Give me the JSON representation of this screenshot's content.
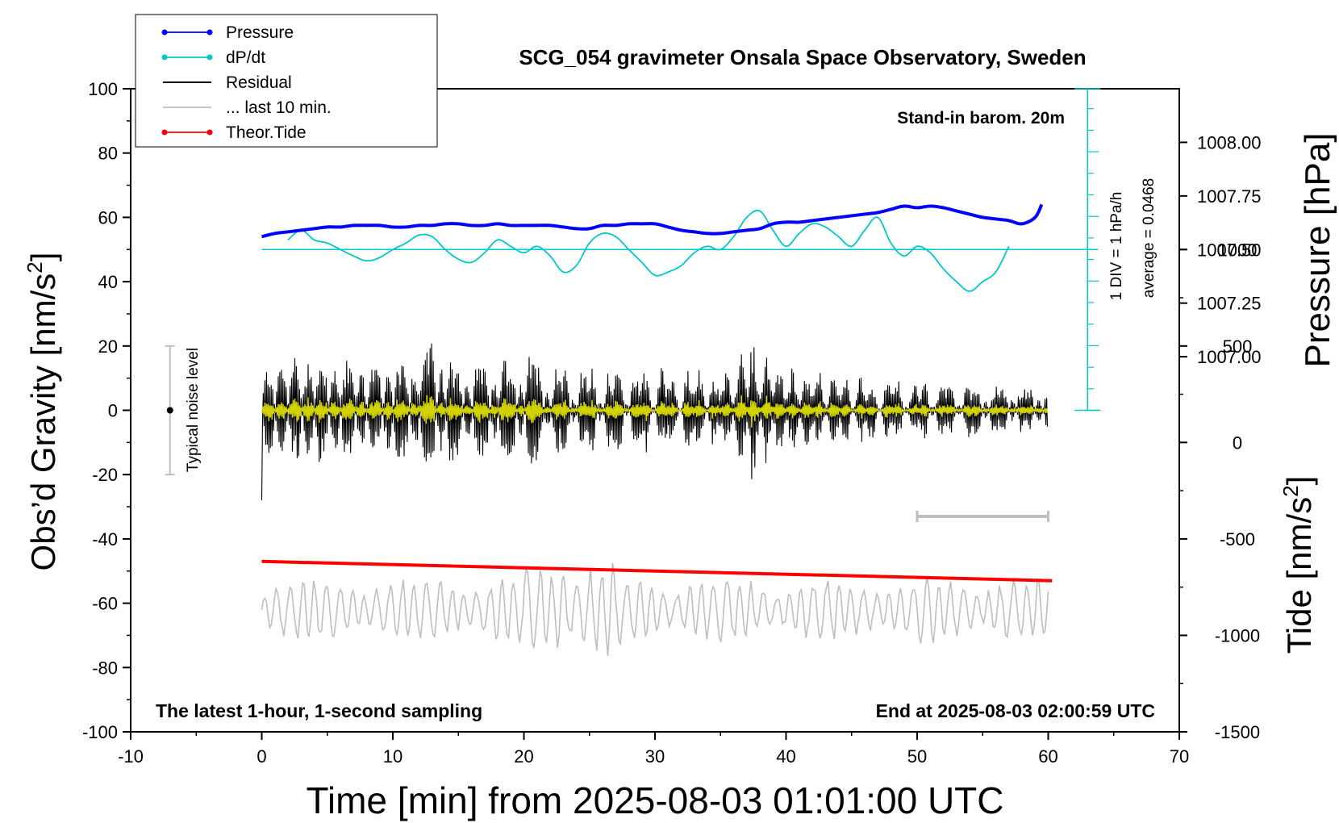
{
  "chart_data": {
    "type": "line",
    "title": "SCG_054 gravimeter Onsala Space Observatory, Sweden",
    "xlabel": "Time [min] from 2025-08-03 01:01:00 UTC",
    "ylabel_left_main": "Obs’d Gravity [nm/s",
    "ylabel_left_sup": "2",
    "ylabel_left_end": "]",
    "ylabel_right_pressure": "Pressure [hPa]",
    "ylabel_right_tide_main": "Tide [nm/s",
    "ylabel_right_tide_sup": "2",
    "ylabel_right_tide_end": "]",
    "xlim": [
      -10,
      70
    ],
    "ylim": [
      -100,
      100
    ],
    "x_ticks": [
      "-10",
      "0",
      "10",
      "20",
      "30",
      "40",
      "50",
      "60",
      "70"
    ],
    "y_ticks": [
      "-100",
      "-80",
      "-60",
      "-40",
      "-20",
      "0",
      "20",
      "40",
      "60",
      "80",
      "100"
    ],
    "pressure_ticks": [
      "1007.00",
      "1007.25",
      "1007.50",
      "1007.75",
      "1008.00"
    ],
    "pressure_tick_values": [
      1007.0,
      1007.25,
      1007.5,
      1007.75,
      1008.0
    ],
    "tide_ticks": [
      "-1500",
      "-1000",
      "-500",
      "0",
      "500",
      "1000"
    ],
    "tide_tick_values": [
      -1500,
      -1000,
      -500,
      0,
      500,
      1000
    ],
    "grid": false,
    "legend_position": "top-left",
    "legend": [
      {
        "label": "Pressure",
        "color": "#0000ff",
        "marker": true
      },
      {
        "label": "dP/dt",
        "color": "#00c8c8",
        "marker": true
      },
      {
        "label": "Residual",
        "color": "#000000",
        "marker": false
      },
      {
        "label": "... last 10 min.",
        "color": "#bebebe",
        "marker": false
      },
      {
        "label": "Theor.Tide",
        "color": "#ff0000",
        "marker": true
      }
    ],
    "annotations": {
      "barometer": "Stand-in barom. 20m",
      "scale_div": "1 DIV = 1 hPa/h",
      "average": "average = 0.0468",
      "noise": "Typical noise level",
      "bottom_left": "The latest 1-hour, 1-second sampling",
      "bottom_right": "End at 2025-08-03 02:00:59 UTC"
    },
    "colors": {
      "pressure": "#0000ff",
      "dpdt": "#00c8c8",
      "residual": "#000000",
      "residual_smooth": "#d2d200",
      "last10": "#bebebe",
      "tide": "#ff0000",
      "noise": "#bebebe"
    },
    "noise_level": {
      "x": -7,
      "center": 0,
      "half_range": 20
    },
    "last10_marker": {
      "x_start": 50,
      "x_end": 60,
      "y": -33
    },
    "dpdt_axis": {
      "x": 63,
      "y_top": 100,
      "y_bottom": 0,
      "zero_level": 50,
      "tick_spacing": 6.7
    },
    "series": [
      {
        "name": "Pressure",
        "x": [
          0,
          1,
          2,
          3,
          4,
          5,
          6,
          7,
          8,
          9,
          10,
          11,
          12,
          13,
          14,
          15,
          16,
          17,
          18,
          19,
          20,
          21,
          22,
          23,
          24,
          25,
          26,
          27,
          28,
          29,
          30,
          31,
          32,
          33,
          34,
          35,
          36,
          37,
          38,
          39,
          40,
          41,
          42,
          43,
          44,
          45,
          46,
          47,
          48,
          49,
          50,
          51,
          52,
          53,
          54,
          55,
          56,
          57,
          58,
          59,
          59.5
        ],
        "y": [
          54,
          55,
          55.5,
          56,
          56.5,
          57,
          57,
          57.5,
          57.5,
          57.5,
          57,
          57,
          57.5,
          57.5,
          58,
          58,
          57.5,
          57.5,
          58,
          57.5,
          57.5,
          57.5,
          57.5,
          57,
          56.5,
          56.5,
          57.5,
          57.5,
          58,
          58,
          58,
          57,
          56,
          55.5,
          55,
          55,
          55.5,
          56,
          56.5,
          58,
          58.5,
          58.5,
          59,
          59.5,
          60,
          60.5,
          61,
          61.5,
          62.5,
          63.5,
          63,
          63.5,
          63,
          62,
          61,
          60,
          59.5,
          59,
          58,
          60,
          64
        ]
      },
      {
        "name": "dP/dt",
        "x": [
          2,
          3,
          4,
          5,
          6,
          7,
          8,
          9,
          10,
          11,
          12,
          13,
          14,
          15,
          16,
          17,
          18,
          19,
          20,
          21,
          22,
          23,
          24,
          25,
          26,
          27,
          28,
          29,
          30,
          31,
          32,
          33,
          34,
          35,
          36,
          37,
          38,
          39,
          40,
          41,
          42,
          43,
          44,
          45,
          46,
          47,
          48,
          49,
          50,
          51,
          52,
          53,
          54,
          55,
          56,
          57
        ],
        "y": [
          53,
          56,
          53,
          52,
          50,
          48,
          46.5,
          47.5,
          50,
          52,
          54.5,
          54,
          50,
          47,
          46,
          49,
          53,
          51,
          49,
          51,
          48,
          43,
          45,
          52,
          55,
          54,
          50,
          46,
          42,
          43,
          45,
          49,
          51,
          50,
          54,
          60,
          62,
          56,
          51,
          55,
          58,
          57,
          54,
          51,
          56,
          60,
          52,
          48,
          51,
          49,
          44,
          40,
          37,
          40,
          43,
          51
        ]
      },
      {
        "name": "Theor.Tide",
        "x": [
          0,
          60.3
        ],
        "y": [
          -47,
          -53
        ]
      }
    ]
  }
}
